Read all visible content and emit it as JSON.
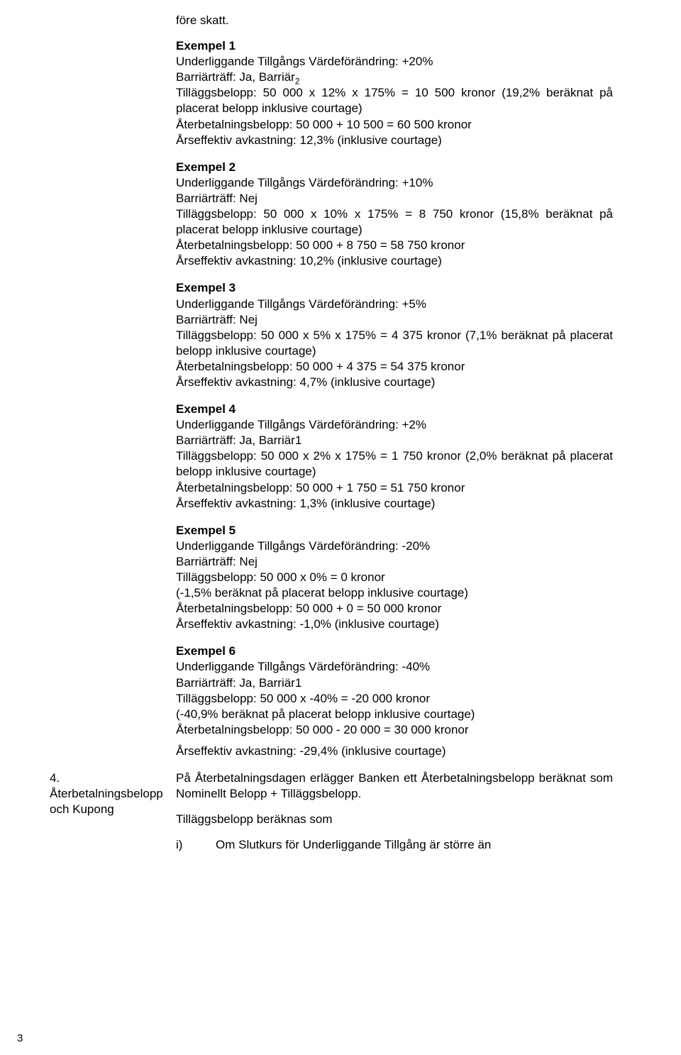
{
  "top_line": "före skatt.",
  "examples": [
    {
      "title": "Exempel 1",
      "lines": [
        "Underliggande Tillgångs Värdeförändring: +20%",
        {
          "text": "Barriärträff: Ja, Barriär",
          "sub": "2"
        },
        "Tilläggsbelopp: 50 000 x 12% x 175% = 10 500 kronor (19,2% beräknat på placerat belopp inklusive courtage)",
        "Återbetalningsbelopp: 50 000 + 10 500 = 60 500 kronor",
        "Årseffektiv avkastning: 12,3% (inklusive courtage)"
      ]
    },
    {
      "title": "Exempel 2",
      "lines": [
        "Underliggande Tillgångs Värdeförändring: +10%",
        "Barriärträff: Nej",
        "Tilläggsbelopp: 50 000 x 10% x 175% = 8 750 kronor (15,8% beräknat på placerat belopp inklusive courtage)",
        "Återbetalningsbelopp: 50 000 + 8 750 = 58 750 kronor",
        "Årseffektiv avkastning: 10,2% (inklusive courtage)"
      ]
    },
    {
      "title": "Exempel 3",
      "lines": [
        "Underliggande Tillgångs Värdeförändring: +5%",
        "Barriärträff: Nej",
        "Tilläggsbelopp: 50 000 x 5% x 175% = 4 375 kronor (7,1% beräknat på placerat belopp inklusive courtage)",
        "Återbetalningsbelopp: 50 000 + 4 375 = 54 375 kronor",
        "Årseffektiv avkastning: 4,7% (inklusive courtage)"
      ]
    },
    {
      "title": "Exempel 4",
      "lines": [
        "Underliggande Tillgångs Värdeförändring: +2%",
        "Barriärträff: Ja, Barriär1",
        "Tilläggsbelopp: 50 000 x 2% x 175% = 1 750 kronor (2,0% beräknat på placerat belopp inklusive courtage)",
        "Återbetalningsbelopp: 50 000 + 1 750 = 51 750 kronor",
        "Årseffektiv avkastning: 1,3% (inklusive courtage)"
      ]
    },
    {
      "title": "Exempel 5",
      "lines": [
        "Underliggande Tillgångs Värdeförändring: -20%",
        "Barriärträff: Nej",
        "Tilläggsbelopp: 50 000 x 0% = 0 kronor",
        "(-1,5% beräknat på placerat belopp inklusive courtage)",
        "Återbetalningsbelopp: 50 000 + 0 = 50 000 kronor",
        "Årseffektiv avkastning: -1,0% (inklusive courtage)"
      ]
    },
    {
      "title": "Exempel 6",
      "lines": [
        "Underliggande Tillgångs Värdeförändring: -40%",
        "Barriärträff: Ja, Barriär1",
        "Tilläggsbelopp: 50 000 x -40% = -20 000 kronor",
        "(-40,9% beräknat på placerat belopp inklusive courtage)",
        " Återbetalningsbelopp: 50 000 - 20 000 = 30 000 kronor",
        "Årseffektiv avkastning: -29,4% (inklusive courtage)"
      ]
    }
  ],
  "row4": {
    "number": "4.",
    "label": "Återbetalningsbelopp och Kupong",
    "body": "På Återbetalningsdagen erlägger Banken ett Återbetalningsbelopp beräknat som Nominellt Belopp + Tilläggsbelopp.",
    "sub1": "Tilläggsbelopp beräknas som",
    "item_marker": "i)",
    "item_text": "Om Slutkurs för Underliggande Tillgång är större än"
  },
  "page_number": "3"
}
